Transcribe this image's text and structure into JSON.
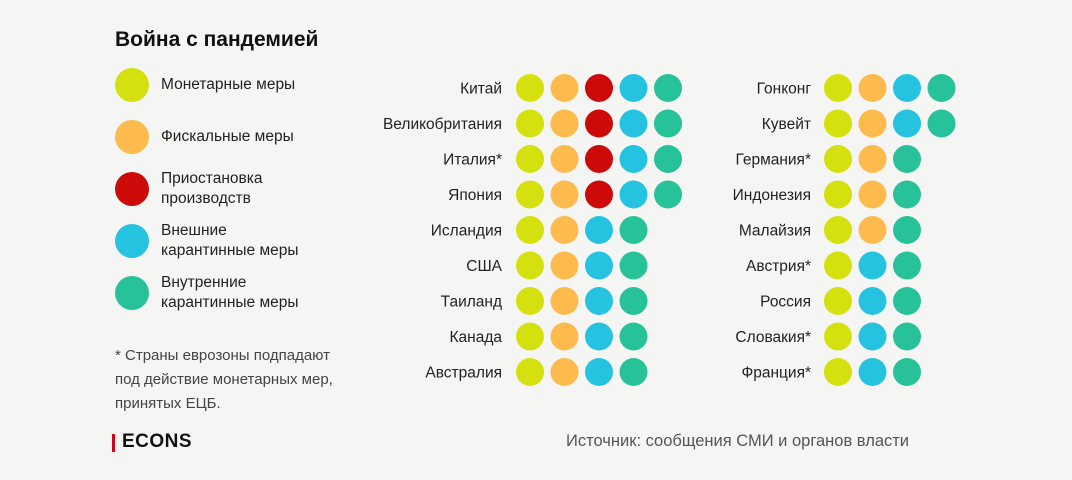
{
  "title": "Война с пандемией",
  "colors": {
    "monetary": "#d4e10f",
    "fiscal": "#fdbb4d",
    "shutdown": "#cc0a0a",
    "external": "#25c3e0",
    "internal": "#27c29a",
    "brand_red": "#d0021b"
  },
  "legend": [
    {
      "key": "monetary",
      "label": "Монетарные меры"
    },
    {
      "key": "fiscal",
      "label": "Фискальные меры"
    },
    {
      "key": "shutdown",
      "label": "Приостановка\nпроизводств"
    },
    {
      "key": "external",
      "label": "Внешние\nкарантинные меры"
    },
    {
      "key": "internal",
      "label": "Внутренние\nкарантинные меры"
    }
  ],
  "footnote": "* Страны еврозоны подпадают\nпод действие монетарных мер,\nпринятых ЕЦБ.",
  "logo": "ECONS",
  "source": "Источник: сообщения СМИ и органов власти",
  "chart_data": {
    "type": "table",
    "columns": [
      {
        "rows": [
          {
            "country": "Китай",
            "measures": [
              "monetary",
              "fiscal",
              "shutdown",
              "external",
              "internal"
            ]
          },
          {
            "country": "Великобритания",
            "measures": [
              "monetary",
              "fiscal",
              "shutdown",
              "external",
              "internal"
            ]
          },
          {
            "country": "Италия*",
            "measures": [
              "monetary",
              "fiscal",
              "shutdown",
              "external",
              "internal"
            ]
          },
          {
            "country": "Япония",
            "measures": [
              "monetary",
              "fiscal",
              "shutdown",
              "external",
              "internal"
            ]
          },
          {
            "country": "Исландия",
            "measures": [
              "monetary",
              "fiscal",
              "external",
              "internal"
            ]
          },
          {
            "country": "США",
            "measures": [
              "monetary",
              "fiscal",
              "external",
              "internal"
            ]
          },
          {
            "country": "Таиланд",
            "measures": [
              "monetary",
              "fiscal",
              "external",
              "internal"
            ]
          },
          {
            "country": "Канада",
            "measures": [
              "monetary",
              "fiscal",
              "external",
              "internal"
            ]
          },
          {
            "country": "Австралия",
            "measures": [
              "monetary",
              "fiscal",
              "external",
              "internal"
            ]
          }
        ]
      },
      {
        "rows": [
          {
            "country": "Гонконг",
            "measures": [
              "monetary",
              "fiscal",
              "external",
              "internal"
            ]
          },
          {
            "country": "Кувейт",
            "measures": [
              "monetary",
              "fiscal",
              "external",
              "internal"
            ]
          },
          {
            "country": "Германия*",
            "measures": [
              "monetary",
              "fiscal",
              "internal"
            ]
          },
          {
            "country": "Индонезия",
            "measures": [
              "monetary",
              "fiscal",
              "internal"
            ]
          },
          {
            "country": "Малайзия",
            "measures": [
              "monetary",
              "fiscal",
              "internal"
            ]
          },
          {
            "country": "Австрия*",
            "measures": [
              "monetary",
              "external",
              "internal"
            ]
          },
          {
            "country": "Россия",
            "measures": [
              "monetary",
              "external",
              "internal"
            ]
          },
          {
            "country": "Словакия*",
            "measures": [
              "monetary",
              "external",
              "internal"
            ]
          },
          {
            "country": "Франция*",
            "measures": [
              "monetary",
              "external",
              "internal"
            ]
          }
        ]
      }
    ]
  }
}
